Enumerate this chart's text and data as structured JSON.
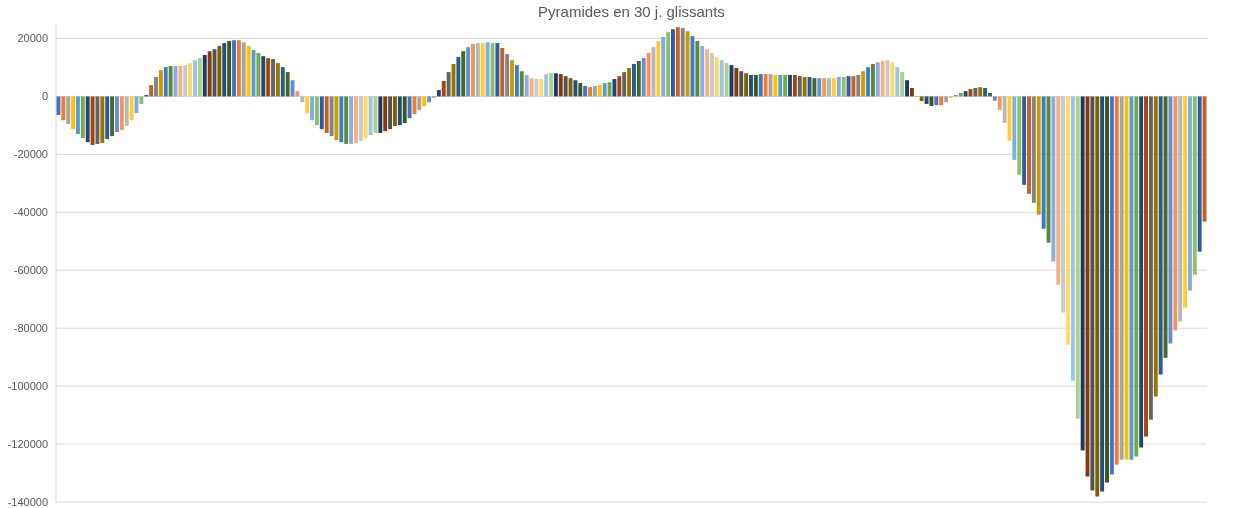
{
  "chart_data": {
    "type": "bar",
    "title": "Pyramides en 30 j. glissants",
    "categories": [
      null,
      null,
      null,
      null,
      null,
      null,
      null,
      null,
      null,
      null,
      null,
      null,
      null,
      null,
      null,
      null,
      null,
      null,
      null,
      null,
      null,
      null,
      null,
      null,
      null,
      null,
      null,
      null,
      null,
      null,
      null,
      null,
      null,
      null,
      null,
      null,
      null,
      null,
      null,
      null,
      null,
      null,
      null,
      null,
      null,
      null,
      null,
      null,
      null,
      null,
      null,
      null,
      null,
      null,
      null,
      null,
      null,
      null,
      null,
      null,
      null,
      null,
      null,
      null,
      null,
      null,
      null,
      null,
      null,
      null,
      null,
      null,
      null,
      null,
      null,
      null,
      null,
      null,
      null,
      null,
      null,
      null,
      null,
      null,
      null,
      null,
      null,
      null,
      null,
      null,
      null,
      null,
      null,
      null,
      null,
      null,
      null,
      null,
      null,
      null,
      null,
      null,
      null,
      null,
      null,
      null,
      null,
      null,
      null,
      null,
      null,
      null,
      null,
      null,
      null,
      null,
      null,
      null,
      null,
      null,
      null,
      null,
      null,
      null,
      null,
      null,
      null,
      null,
      null,
      null,
      null,
      null,
      null,
      null,
      null,
      null,
      null,
      null,
      null,
      null,
      null,
      null,
      null,
      null,
      null,
      null,
      null,
      null,
      null,
      null,
      null,
      null,
      null,
      null,
      null,
      null,
      null,
      null,
      null,
      null,
      null,
      null,
      null,
      null,
      null,
      null,
      null,
      null,
      null,
      null,
      null,
      null,
      null,
      null,
      null,
      null,
      null,
      null,
      null,
      null,
      null,
      null,
      null,
      null,
      null,
      null,
      null,
      null,
      null,
      null,
      null,
      null,
      null,
      null,
      null,
      null,
      null,
      null,
      null,
      null,
      null,
      null,
      null,
      null,
      null,
      null,
      null,
      null,
      null,
      null,
      null,
      null,
      null,
      null,
      null,
      null,
      null,
      null,
      null,
      null,
      null,
      null,
      null,
      null,
      null,
      null,
      null,
      null,
      null,
      null,
      null,
      null,
      null,
      null,
      null,
      null
    ],
    "values": [
      -6400,
      -8200,
      -9500,
      -11300,
      -13000,
      -14400,
      -15800,
      -16800,
      -16400,
      -16100,
      -14700,
      -13700,
      -12300,
      -11600,
      -10200,
      -8200,
      -5700,
      -2600,
      500,
      3900,
      6700,
      9100,
      10100,
      10500,
      10500,
      10500,
      10800,
      11500,
      12500,
      13200,
      14300,
      15600,
      16300,
      17400,
      18400,
      19100,
      19400,
      19400,
      18700,
      17400,
      16000,
      15000,
      13900,
      13200,
      12900,
      11500,
      10100,
      8400,
      5600,
      1800,
      -2000,
      -5700,
      -8200,
      -9900,
      -11300,
      -12600,
      -13700,
      -15100,
      -15800,
      -16400,
      -16400,
      -16100,
      -15400,
      -14400,
      -13300,
      -12600,
      -12600,
      -12000,
      -11300,
      -10200,
      -9900,
      -9200,
      -7500,
      -6100,
      -4700,
      -3300,
      -2000,
      -400,
      2200,
      5300,
      8400,
      11200,
      13600,
      15600,
      17000,
      18100,
      18400,
      18400,
      18700,
      18400,
      18400,
      16700,
      14600,
      12500,
      10800,
      8700,
      7400,
      6300,
      6000,
      6000,
      7700,
      8000,
      8000,
      7700,
      7000,
      6300,
      5600,
      4600,
      3600,
      3200,
      3600,
      3900,
      4600,
      4900,
      6000,
      7000,
      8400,
      9800,
      11200,
      12200,
      13200,
      15000,
      17000,
      19100,
      20500,
      22200,
      23200,
      23900,
      23600,
      22500,
      20800,
      19100,
      17400,
      16300,
      15000,
      13600,
      12500,
      11500,
      10800,
      9800,
      8700,
      8000,
      7400,
      7400,
      7700,
      7700,
      7700,
      7400,
      7400,
      7400,
      7400,
      7400,
      7000,
      6700,
      6700,
      6300,
      6300,
      6300,
      6300,
      6300,
      6700,
      6700,
      7000,
      7000,
      7400,
      8700,
      10100,
      11200,
      11800,
      12200,
      12500,
      11800,
      10100,
      8400,
      5600,
      2900,
      -100,
      -1600,
      -2600,
      -3300,
      -3000,
      -3000,
      -2000,
      -500,
      500,
      1200,
      1800,
      2500,
      2900,
      3200,
      2900,
      1200,
      -1500,
      -4600,
      -9100,
      -15300,
      -21900,
      -27000,
      -30500,
      -33600,
      -36700,
      -40800,
      -45700,
      -50500,
      -57000,
      -65000,
      -74600,
      -85700,
      -98100,
      -111200,
      -122200,
      -131200,
      -136000,
      -138100,
      -136400,
      -133300,
      -130500,
      -127100,
      -125400,
      -125400,
      -125400,
      -124300,
      -121200,
      -117400,
      -111600,
      -103600,
      -96000,
      -90200,
      -85300,
      -80800,
      -77700,
      -72900,
      -67000,
      -61500,
      -53600,
      -43200
    ],
    "colors": [
      "#4472c4",
      "#ed7d31",
      "#a5a5a5",
      "#ffc000",
      "#5b9bd5",
      "#70ad47",
      "#264478",
      "#9e480e",
      "#636363",
      "#997300",
      "#255e91",
      "#43682b",
      "#698ed0",
      "#f1975a",
      "#b7b7b7",
      "#ffcd33",
      "#7cafdd",
      "#8cc168",
      "#335aa1",
      "#be6428",
      "#848484",
      "#cc9a00",
      "#3c7dc4",
      "#5a8a39",
      "#8faadc",
      "#f4b183",
      "#c9c9c9",
      "#ffd966",
      "#9dc3e6",
      "#a9d18e",
      "#203864",
      "#843c0c",
      "#525252",
      "#7f6000",
      "#1f4e79",
      "#385723",
      "#4472c4",
      "#ed7d31",
      "#a5a5a5",
      "#ffc000",
      "#5b9bd5",
      "#70ad47",
      "#264478",
      "#9e480e",
      "#636363",
      "#997300",
      "#255e91",
      "#43682b",
      "#698ed0",
      "#f1975a",
      "#b7b7b7",
      "#ffcd33",
      "#7cafdd",
      "#8cc168",
      "#335aa1",
      "#be6428",
      "#848484",
      "#cc9a00",
      "#3c7dc4",
      "#5a8a39",
      "#8faadc",
      "#f4b183",
      "#c9c9c9",
      "#ffd966",
      "#9dc3e6",
      "#a9d18e",
      "#203864",
      "#843c0c",
      "#525252",
      "#7f6000",
      "#1f4e79",
      "#385723",
      "#4472c4",
      "#ed7d31",
      "#a5a5a5",
      "#ffc000",
      "#5b9bd5",
      "#70ad47",
      "#264478",
      "#9e480e",
      "#636363",
      "#997300",
      "#255e91",
      "#43682b",
      "#698ed0",
      "#f1975a",
      "#b7b7b7",
      "#ffcd33",
      "#7cafdd",
      "#8cc168",
      "#335aa1",
      "#be6428",
      "#848484",
      "#cc9a00",
      "#3c7dc4",
      "#5a8a39",
      "#8faadc",
      "#f4b183",
      "#c9c9c9",
      "#ffd966",
      "#9dc3e6",
      "#a9d18e",
      "#203864",
      "#843c0c",
      "#525252",
      "#7f6000",
      "#1f4e79",
      "#385723",
      "#4472c4",
      "#ed7d31",
      "#a5a5a5",
      "#ffc000",
      "#5b9bd5",
      "#70ad47",
      "#264478",
      "#9e480e",
      "#636363",
      "#997300",
      "#255e91",
      "#43682b",
      "#698ed0",
      "#f1975a",
      "#b7b7b7",
      "#ffcd33",
      "#7cafdd",
      "#8cc168",
      "#335aa1",
      "#be6428",
      "#848484",
      "#cc9a00",
      "#3c7dc4",
      "#5a8a39",
      "#8faadc",
      "#f4b183",
      "#c9c9c9",
      "#ffd966",
      "#9dc3e6",
      "#a9d18e",
      "#203864",
      "#843c0c",
      "#525252",
      "#7f6000",
      "#1f4e79",
      "#385723",
      "#4472c4",
      "#ed7d31",
      "#a5a5a5",
      "#ffc000",
      "#5b9bd5",
      "#70ad47",
      "#264478",
      "#9e480e",
      "#636363",
      "#997300",
      "#255e91",
      "#43682b",
      "#698ed0",
      "#f1975a",
      "#b7b7b7",
      "#ffcd33",
      "#7cafdd",
      "#8cc168",
      "#335aa1",
      "#be6428",
      "#848484",
      "#cc9a00",
      "#3c7dc4",
      "#5a8a39",
      "#8faadc",
      "#f4b183",
      "#c9c9c9",
      "#ffd966",
      "#9dc3e6",
      "#a9d18e",
      "#203864",
      "#843c0c",
      "#525252",
      "#7f6000",
      "#1f4e79",
      "#385723",
      "#4472c4",
      "#ed7d31",
      "#a5a5a5",
      "#ffc000",
      "#5b9bd5",
      "#70ad47",
      "#264478",
      "#9e480e",
      "#636363",
      "#997300",
      "#255e91",
      "#43682b",
      "#698ed0",
      "#f1975a",
      "#b7b7b7",
      "#ffcd33",
      "#7cafdd",
      "#8cc168",
      "#335aa1",
      "#be6428",
      "#848484",
      "#cc9a00",
      "#3c7dc4",
      "#5a8a39",
      "#8faadc",
      "#f4b183",
      "#c9c9c9",
      "#ffd966",
      "#9dc3e6",
      "#a9d18e",
      "#203864",
      "#843c0c",
      "#525252",
      "#7f6000",
      "#1f4e79",
      "#385723",
      "#4472c4",
      "#ed7d31",
      "#a5a5a5",
      "#ffc000",
      "#5b9bd5",
      "#70ad47",
      "#264478",
      "#9e480e",
      "#636363",
      "#997300",
      "#255e91",
      "#43682b",
      "#698ed0",
      "#f1975a",
      "#b7b7b7",
      "#ffcd33",
      "#7cafdd",
      "#8cc168",
      "#335aa1",
      "#be6428"
    ],
    "ylim": [
      -140000,
      25000
    ],
    "yticks": [
      20000,
      0,
      -20000,
      -40000,
      -60000,
      -80000,
      -100000,
      -120000,
      -140000
    ],
    "grid": "y"
  }
}
